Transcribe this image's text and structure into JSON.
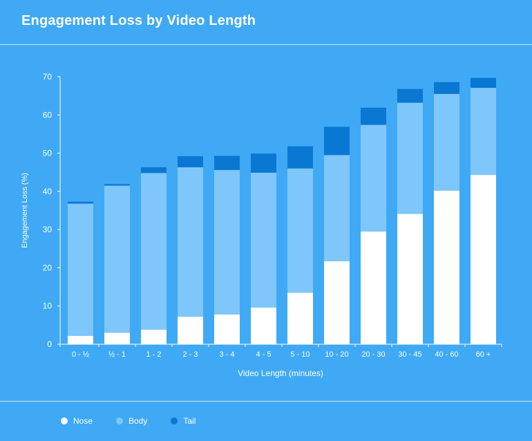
{
  "title": "Engagement Loss by Video Length",
  "colors": {
    "background": "#3fa9f5",
    "nose": "#ffffff",
    "body": "#7fc6fa",
    "tail": "#0a78d2"
  },
  "chart_data": {
    "type": "bar",
    "stacked": true,
    "categories": [
      "0 - ½",
      "½ - 1",
      "1 - 2",
      "2 - 3",
      "3 - 4",
      "4 - 5",
      "5 - 10",
      "10 - 20",
      "20 - 30",
      "30 - 45",
      "40 - 60",
      "60 +"
    ],
    "series": [
      {
        "name": "Nose",
        "color": "#ffffff",
        "values": [
          2.2,
          3,
          3.8,
          7.2,
          7.8,
          9.6,
          13.5,
          21.7,
          29.5,
          34.1,
          40.2,
          44.3
        ]
      },
      {
        "name": "Body",
        "color": "#7fc6fa",
        "values": [
          34.6,
          38.5,
          41,
          39.1,
          37.8,
          35.3,
          32.5,
          27.8,
          27.9,
          29.1,
          25.3,
          22.8
        ]
      },
      {
        "name": "Tail",
        "color": "#0a78d2",
        "values": [
          0.5,
          0.4,
          1.5,
          2.9,
          3.7,
          5,
          5.8,
          7.4,
          4.5,
          3.6,
          3.1,
          2.6
        ]
      }
    ],
    "xlabel": "Video Length (minutes)",
    "ylabel": "Engagement Loss (%)",
    "ylim": [
      0,
      70
    ],
    "yticks": [
      0,
      10,
      20,
      30,
      40,
      50,
      60,
      70
    ],
    "grid": false,
    "legend_position": "bottom-left"
  }
}
